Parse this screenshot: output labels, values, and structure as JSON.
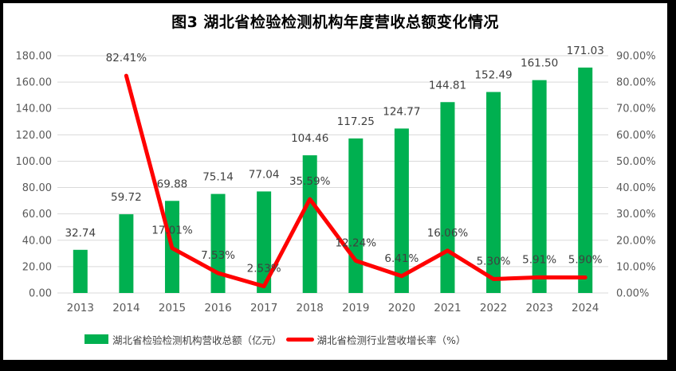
{
  "title": "图3 湖北省检验检测机构年度营收总额变化情况",
  "legend": {
    "bar_label": "湖北省检验检测机构营收总额（亿元）",
    "line_label": "湖北省检测行业营收增长率（%）"
  },
  "colors": {
    "bar": "#00B050",
    "line": "#FF0000",
    "grid": "#D9D9D9",
    "axis_text": "#595959",
    "label_text": "#404040",
    "title_text": "#000000",
    "frame_border": "#000000"
  },
  "chart_data": {
    "type": "bar",
    "subtype": "combo-bar-line-dual-axis",
    "title": "图3 湖北省检验检测机构年度营收总额变化情况",
    "categories": [
      "2013",
      "2014",
      "2015",
      "2016",
      "2017",
      "2018",
      "2019",
      "2020",
      "2021",
      "2022",
      "2023",
      "2024"
    ],
    "series": [
      {
        "name": "湖北省检验检测机构营收总额（亿元）",
        "type": "bar",
        "axis": "left",
        "color": "#00B050",
        "values": [
          32.74,
          59.72,
          69.88,
          75.14,
          77.04,
          104.46,
          117.25,
          124.77,
          144.81,
          152.49,
          161.5,
          171.03
        ],
        "labels": [
          "32.74",
          "59.72",
          "69.88",
          "75.14",
          "77.04",
          "104.46",
          "117.25",
          "124.77",
          "144.81",
          "152.49",
          "161.50",
          "171.03"
        ]
      },
      {
        "name": "湖北省检测行业营收增长率（%）",
        "type": "line",
        "axis": "right",
        "color": "#FF0000",
        "values": [
          null,
          82.41,
          17.01,
          7.53,
          2.53,
          35.59,
          12.24,
          6.41,
          16.06,
          5.3,
          5.91,
          5.9
        ],
        "labels": [
          null,
          "82.41%",
          "17.01%",
          "7.53%",
          "2.53%",
          "35.59%",
          "12.24%",
          "6.41%",
          "16.06%",
          "5.30%",
          "5.91%",
          "5.90%"
        ]
      }
    ],
    "left_axis": {
      "min": 0,
      "max": 180,
      "step": 20,
      "tick_labels": [
        "0.00",
        "20.00",
        "40.00",
        "60.00",
        "80.00",
        "100.00",
        "120.00",
        "140.00",
        "160.00",
        "180.00"
      ]
    },
    "right_axis": {
      "min": 0,
      "max": 90,
      "step": 10,
      "tick_labels": [
        "0.00%",
        "10.00%",
        "20.00%",
        "30.00%",
        "40.00%",
        "50.00%",
        "60.00%",
        "70.00%",
        "80.00%",
        "90.00%"
      ]
    },
    "grid": true,
    "legend_position": "bottom"
  }
}
